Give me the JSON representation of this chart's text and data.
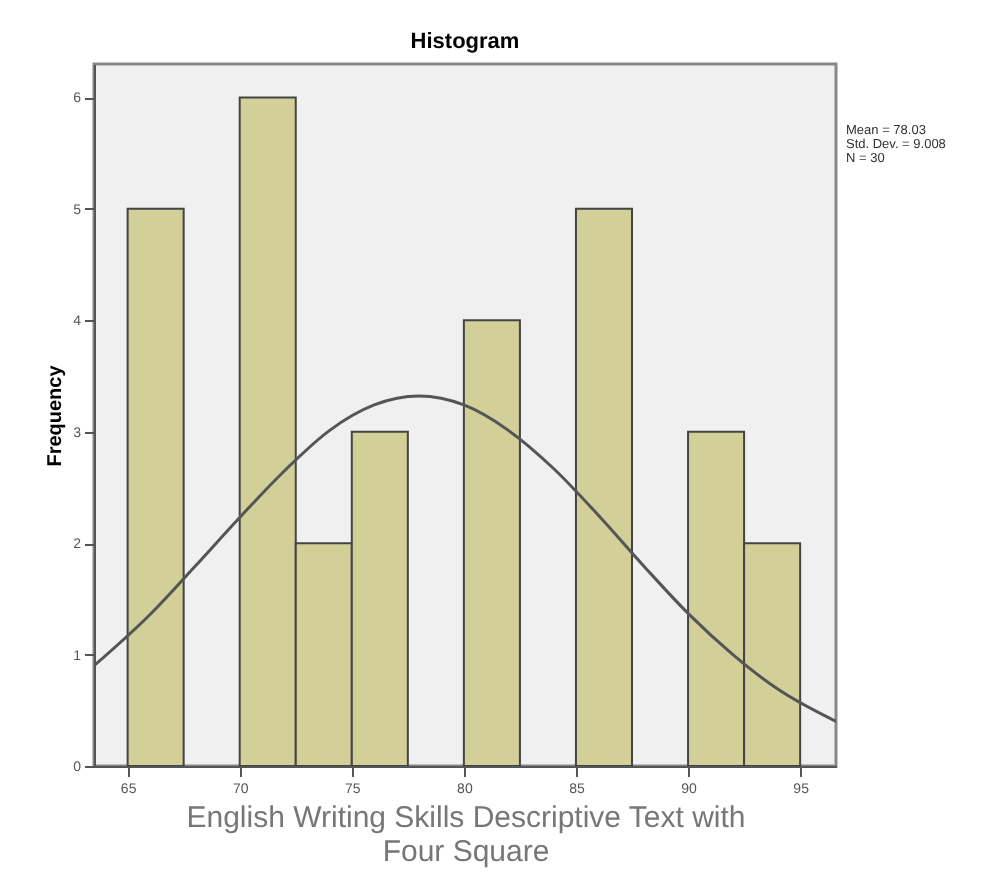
{
  "chart_data": {
    "type": "histogram",
    "title": "Histogram",
    "xlabel": "English Writing Skills Descriptive Text with Four Square",
    "ylabel": "Frequency",
    "bins": [
      65,
      67.5,
      70,
      72.5,
      75,
      77.5,
      80,
      82.5,
      85,
      87.5,
      90,
      92.5,
      95
    ],
    "values": [
      5,
      0,
      6,
      2,
      3,
      0,
      4,
      0,
      5,
      0,
      3,
      2
    ],
    "color": "#d3cf99",
    "series": [
      {
        "type": "line",
        "color": "#555555",
        "x": [
          63.5,
          66,
          68,
          70,
          72,
          74,
          76,
          78,
          80,
          82,
          84,
          86,
          88,
          90,
          92,
          94,
          96.6
        ],
        "values": [
          0.9,
          1.36,
          1.79,
          2.23,
          2.65,
          3.01,
          3.24,
          3.32,
          3.24,
          3.01,
          2.67,
          2.25,
          1.8,
          1.37,
          1.0,
          0.69,
          0.4
        ]
      }
    ],
    "xlim": [
      63.5,
      96.6
    ],
    "ylim": [
      0,
      6.3
    ],
    "xticks": [
      65,
      70,
      75,
      80,
      85,
      90,
      95
    ],
    "yticks": [
      0,
      1,
      2,
      3,
      4,
      5,
      6
    ],
    "grid": false,
    "annotations": [
      "Mean = 78.03",
      "Std. Dev. = 9.008",
      "N = 30"
    ]
  }
}
